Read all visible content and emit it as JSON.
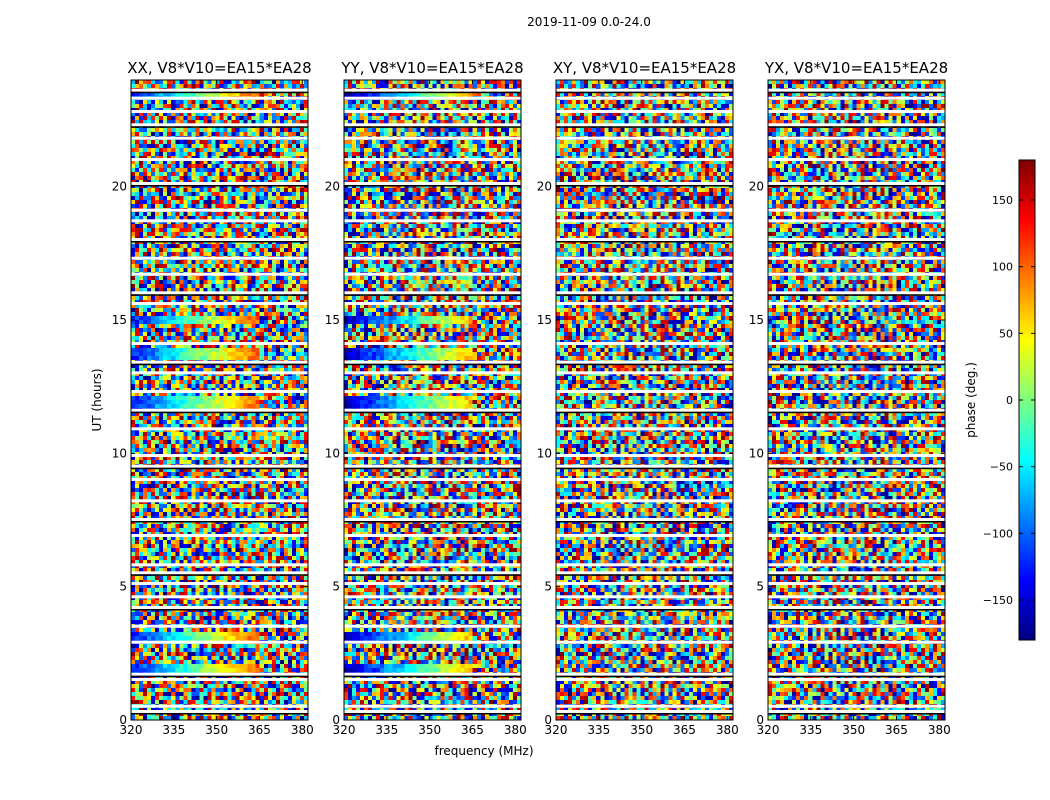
{
  "suptitle": "2019-11-09 0.0-24.0",
  "chart_data": {
    "type": "heatmap",
    "title": "2019-11-09 0.0-24.0",
    "xlabel": "frequency (MHz)",
    "ylabel": "UT (hours)",
    "xlim": [
      320,
      382
    ],
    "ylim": [
      0,
      24
    ],
    "xticks": [
      320,
      335,
      350,
      365,
      380
    ],
    "yticks": [
      0,
      5,
      10,
      15,
      20
    ],
    "colorbar": {
      "label": "phase (deg.)",
      "range": [
        -180,
        180
      ],
      "ticks": [
        -150,
        -100,
        -50,
        0,
        50,
        100,
        150
      ],
      "colormap": "jet",
      "colors": [
        "#00007f",
        "#0000ff",
        "#007fff",
        "#00ffff",
        "#7fff7f",
        "#ffff00",
        "#ff7f00",
        "#ff0000",
        "#7f0000"
      ]
    },
    "panels": [
      {
        "title": "XX, V8*V10=EA15*EA28",
        "ticks_y": [
          "0",
          "5",
          "10",
          "15",
          "20"
        ],
        "ticks_x": [
          "320",
          "335",
          "350",
          "365",
          "380"
        ]
      },
      {
        "title": "YY, V8*V10=EA15*EA28",
        "ticks_y": [
          "0",
          "5",
          "10",
          "15",
          "20"
        ],
        "ticks_x": [
          "320",
          "335",
          "350",
          "365",
          "380"
        ]
      },
      {
        "title": "XY, V8*V10=EA15*EA28",
        "ticks_y": [
          "0",
          "5",
          "10",
          "15",
          "20"
        ],
        "ticks_x": [
          "320",
          "335",
          "350",
          "365",
          "380"
        ]
      },
      {
        "title": "YX, V8*V10=EA15*EA28",
        "ticks_y": [
          "0",
          "5",
          "10",
          "15",
          "20"
        ],
        "ticks_x": [
          "320",
          "335",
          "350",
          "365",
          "380"
        ]
      }
    ],
    "flagged_rows_ut": [
      0.3,
      0.5,
      1.5,
      1.7,
      2.9,
      3.5,
      4.2,
      4.6,
      5.1,
      5.5,
      5.8,
      6.9,
      7.5,
      8.2,
      9.0,
      9.5,
      9.9,
      10.9,
      11.6,
      12.3,
      13.0,
      13.4,
      14.1,
      15.6,
      16.0,
      16.7,
      17.3,
      18.0,
      18.7,
      19.1,
      20.1,
      21.0,
      21.8,
      22.3,
      22.8,
      23.3,
      23.6
    ],
    "structure_bands_ut": [
      {
        "ut": [
          1.7,
          2.2
        ],
        "xx_yy": "smooth"
      },
      {
        "ut": [
          2.9,
          3.4
        ],
        "xx_yy": "smooth"
      },
      {
        "ut": [
          11.6,
          12.2
        ],
        "xx_yy": "smooth"
      },
      {
        "ut": [
          13.6,
          14.1
        ],
        "xx_yy": "smooth"
      },
      {
        "ut": [
          14.9,
          15.2
        ],
        "xx_yy": "smooth"
      },
      {
        "ut": [
          23.3,
          23.6
        ],
        "xx_yy": "smooth"
      }
    ]
  }
}
